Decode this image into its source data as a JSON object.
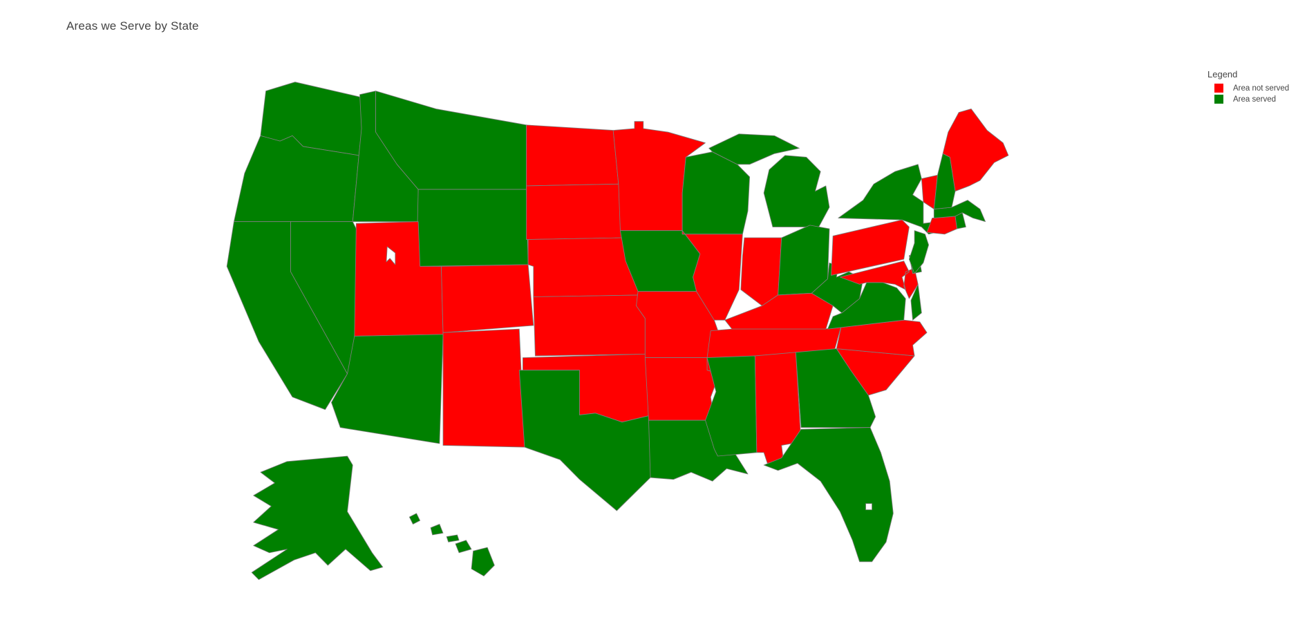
{
  "title": "Areas we Serve by State",
  "colors": {
    "served": "#008000",
    "not_served": "#ff0000",
    "background": "#ffffff",
    "state_border": "#7f7f7f",
    "water": "#ffffff",
    "text": "#444444"
  },
  "legend": {
    "title": "Legend",
    "items": [
      {
        "label": "Area not served",
        "status": "not_served",
        "color": "#ff0000"
      },
      {
        "label": "Area served",
        "status": "served",
        "color": "#008000"
      }
    ]
  },
  "chart_data": {
    "type": "choropleth",
    "title": "Areas we Serve by State",
    "location_mode": "USA-states",
    "projection": "albers-usa",
    "legend_position": "right",
    "categories": {
      "served": "Area served",
      "not_served": "Area not served"
    },
    "states": [
      {
        "code": "WA",
        "name": "Washington",
        "status": "served"
      },
      {
        "code": "OR",
        "name": "Oregon",
        "status": "served"
      },
      {
        "code": "CA",
        "name": "California",
        "status": "served"
      },
      {
        "code": "NV",
        "name": "Nevada",
        "status": "served"
      },
      {
        "code": "ID",
        "name": "Idaho",
        "status": "served"
      },
      {
        "code": "MT",
        "name": "Montana",
        "status": "served"
      },
      {
        "code": "WY",
        "name": "Wyoming",
        "status": "served"
      },
      {
        "code": "UT",
        "name": "Utah",
        "status": "not_served"
      },
      {
        "code": "CO",
        "name": "Colorado",
        "status": "not_served"
      },
      {
        "code": "AZ",
        "name": "Arizona",
        "status": "served"
      },
      {
        "code": "NM",
        "name": "New Mexico",
        "status": "not_served"
      },
      {
        "code": "ND",
        "name": "North Dakota",
        "status": "not_served"
      },
      {
        "code": "SD",
        "name": "South Dakota",
        "status": "not_served"
      },
      {
        "code": "NE",
        "name": "Nebraska",
        "status": "not_served"
      },
      {
        "code": "KS",
        "name": "Kansas",
        "status": "not_served"
      },
      {
        "code": "OK",
        "name": "Oklahoma",
        "status": "not_served"
      },
      {
        "code": "TX",
        "name": "Texas",
        "status": "served"
      },
      {
        "code": "MN",
        "name": "Minnesota",
        "status": "not_served"
      },
      {
        "code": "IA",
        "name": "Iowa",
        "status": "served"
      },
      {
        "code": "MO",
        "name": "Missouri",
        "status": "not_served"
      },
      {
        "code": "AR",
        "name": "Arkansas",
        "status": "not_served"
      },
      {
        "code": "LA",
        "name": "Louisiana",
        "status": "served"
      },
      {
        "code": "WI",
        "name": "Wisconsin",
        "status": "served"
      },
      {
        "code": "IL",
        "name": "Illinois",
        "status": "not_served"
      },
      {
        "code": "MI",
        "name": "Michigan",
        "status": "served"
      },
      {
        "code": "IN",
        "name": "Indiana",
        "status": "not_served"
      },
      {
        "code": "OH",
        "name": "Ohio",
        "status": "served"
      },
      {
        "code": "KY",
        "name": "Kentucky",
        "status": "not_served"
      },
      {
        "code": "TN",
        "name": "Tennessee",
        "status": "not_served"
      },
      {
        "code": "MS",
        "name": "Mississippi",
        "status": "served"
      },
      {
        "code": "AL",
        "name": "Alabama",
        "status": "not_served"
      },
      {
        "code": "GA",
        "name": "Georgia",
        "status": "served"
      },
      {
        "code": "FL",
        "name": "Florida",
        "status": "served"
      },
      {
        "code": "SC",
        "name": "South Carolina",
        "status": "not_served"
      },
      {
        "code": "NC",
        "name": "North Carolina",
        "status": "not_served"
      },
      {
        "code": "VA",
        "name": "Virginia",
        "status": "served"
      },
      {
        "code": "WV",
        "name": "West Virginia",
        "status": "served"
      },
      {
        "code": "MD",
        "name": "Maryland",
        "status": "not_served"
      },
      {
        "code": "DE",
        "name": "Delaware",
        "status": "served"
      },
      {
        "code": "PA",
        "name": "Pennsylvania",
        "status": "not_served"
      },
      {
        "code": "NJ",
        "name": "New Jersey",
        "status": "served"
      },
      {
        "code": "NY",
        "name": "New York",
        "status": "served"
      },
      {
        "code": "CT",
        "name": "Connecticut",
        "status": "not_served"
      },
      {
        "code": "RI",
        "name": "Rhode Island",
        "status": "served"
      },
      {
        "code": "MA",
        "name": "Massachusetts",
        "status": "served"
      },
      {
        "code": "VT",
        "name": "Vermont",
        "status": "not_served"
      },
      {
        "code": "NH",
        "name": "New Hampshire",
        "status": "served"
      },
      {
        "code": "ME",
        "name": "Maine",
        "status": "not_served"
      },
      {
        "code": "AK",
        "name": "Alaska",
        "status": "served"
      },
      {
        "code": "HI",
        "name": "Hawaii",
        "status": "served"
      }
    ]
  }
}
